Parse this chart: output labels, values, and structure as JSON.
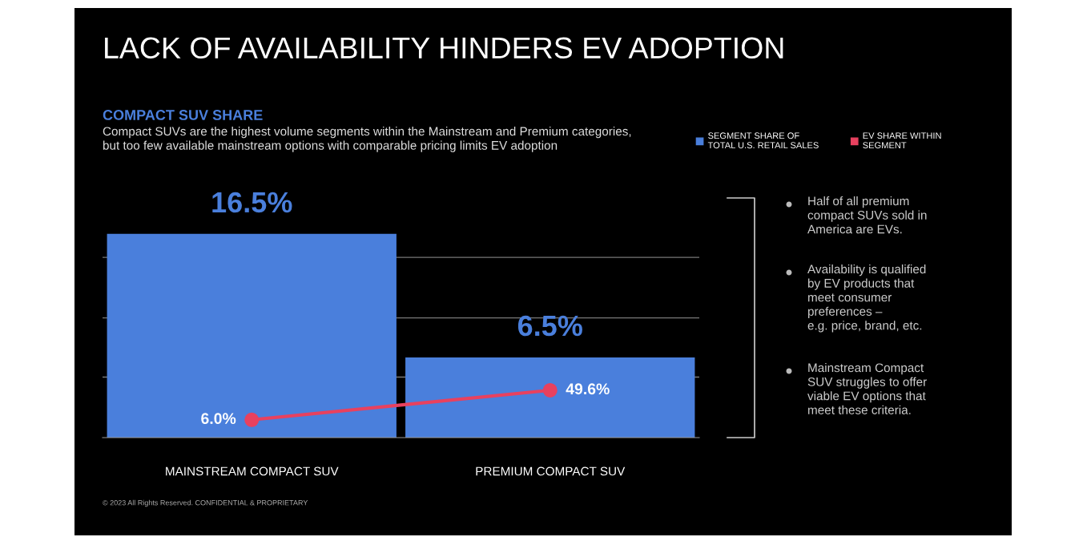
{
  "chart_data": {
    "type": "bar",
    "title": "LACK OF AVAILABILITY HINDERS EV ADOPTION",
    "subtitle": "COMPACT SUV SHARE",
    "categories": [
      "MAINSTREAM COMPACT SUV",
      "PREMIUM COMPACT SUV"
    ],
    "series": [
      {
        "name": "SEGMENT SHARE OF\nTOTAL U.S. RETAIL SALES",
        "color": "#4a7fdc",
        "values": [
          16.5,
          6.5
        ],
        "value_labels": [
          "16.5%",
          "6.5%"
        ]
      },
      {
        "name": "EV SHARE WITHIN\nSEGMENT",
        "type": "line",
        "axis": "y2",
        "color": "#e8415f",
        "values": [
          6.0,
          49.6
        ],
        "value_labels": [
          "6.0%",
          "49.6%"
        ],
        "marker": "circle"
      }
    ],
    "yticks": [
      {
        "value": 4.9,
        "label": null
      },
      {
        "value": 9.7,
        "label": null
      },
      {
        "value": 14.6,
        "label": null
      }
    ],
    "tick_labels": "x",
    "grid": "y",
    "legend": "top right",
    "annotations": [
      "Compact SUVs are the highest volume segments within the Mainstream and Premium categories,\nbut too few available mainstream options with comparable pricing limits EV adoption",
      "Half of all premium\ncompact SUVs sold in\nAmerica are EVs.",
      "Availability is qualified\nby EV products that\nmeet consumer\npreferences –\ne.g. price, brand, etc.",
      "Mainstream Compact\nSUV struggles to offer\nviable EV options that\nmeet these criteria.",
      "© 2023 All Rights Reserved. CONFIDENTIAL & PROPRIETARY"
    ]
  }
}
